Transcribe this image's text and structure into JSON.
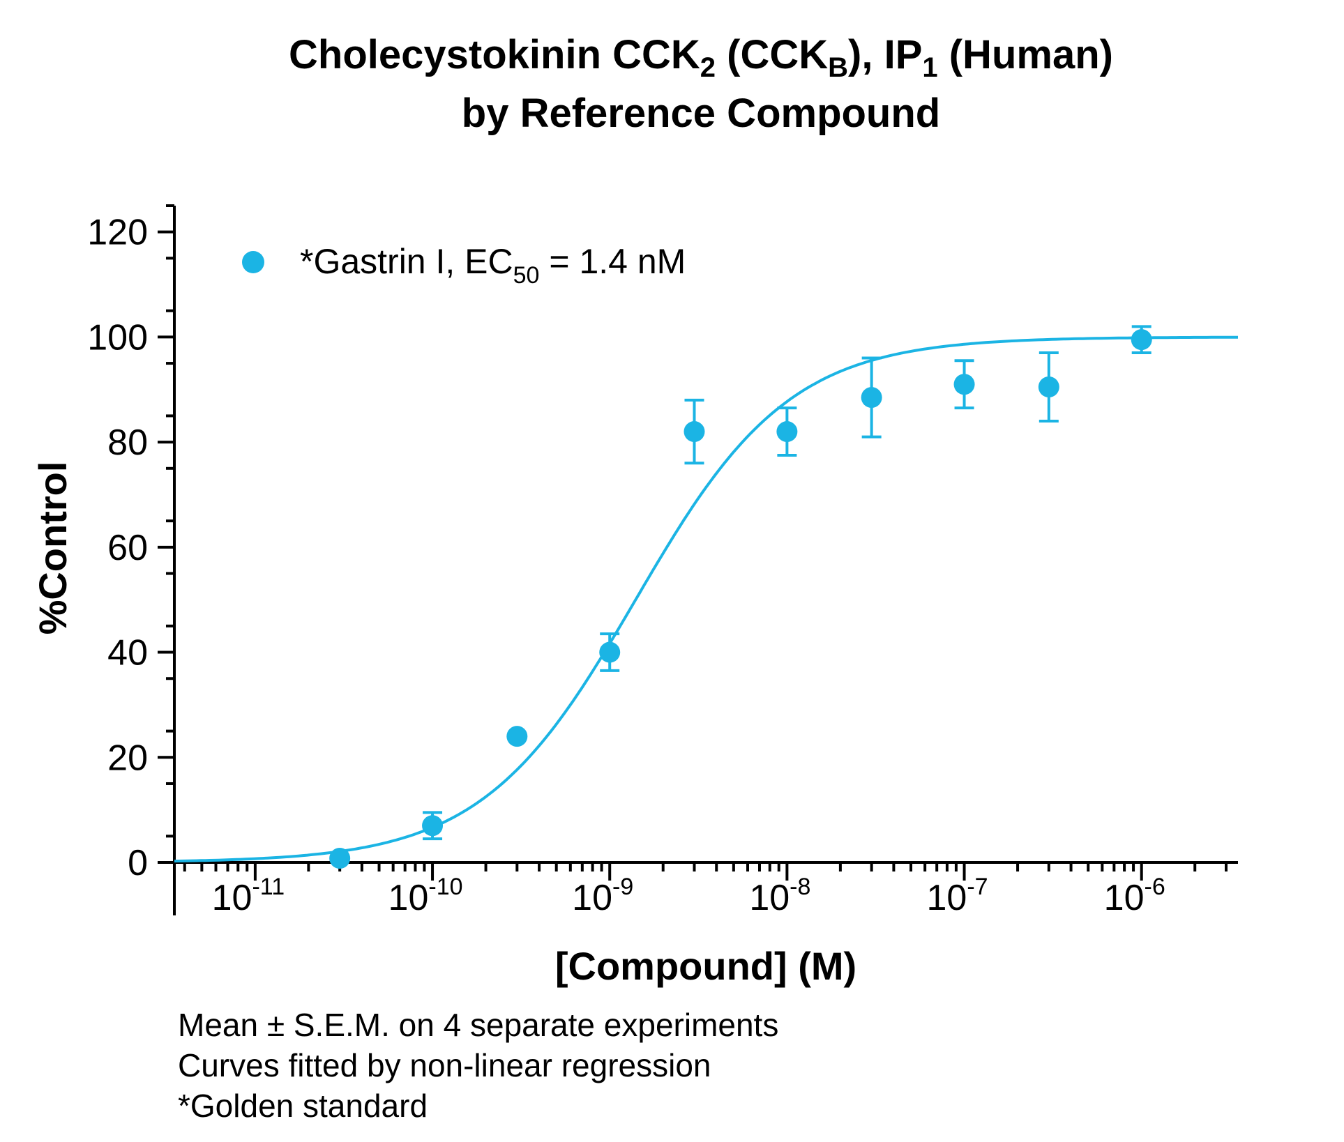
{
  "chart_data": {
    "type": "scatter",
    "title_parts": [
      {
        "text": "Cholecystokinin CCK",
        "sub": false
      },
      {
        "text": "2",
        "sub": true
      },
      {
        "text": " (CCK",
        "sub": false
      },
      {
        "text": "B",
        "sub": true
      },
      {
        "text": "), IP",
        "sub": false
      },
      {
        "text": "1",
        "sub": true
      },
      {
        "text": " (Human)",
        "sub": false
      }
    ],
    "title_line2": "by Reference Compound",
    "xlabel": "[Compound] (M)",
    "ylabel": "%Control",
    "xscale": "log",
    "xlim": [
      3.5e-12,
      3.5e-06
    ],
    "ylim": [
      0,
      125
    ],
    "y_ticks": [
      0,
      20,
      40,
      60,
      80,
      100,
      120
    ],
    "y_tick_labels": [
      "0",
      "20",
      "40",
      "60",
      "80",
      "100",
      "120"
    ],
    "x_ticks": [
      {
        "value": 1e-11,
        "base": "10",
        "exp": "-11"
      },
      {
        "value": 1e-10,
        "base": "10",
        "exp": "-10"
      },
      {
        "value": 1e-09,
        "base": "10",
        "exp": "-9"
      },
      {
        "value": 1e-08,
        "base": "10",
        "exp": "-8"
      },
      {
        "value": 1e-07,
        "base": "10",
        "exp": "-7"
      },
      {
        "value": 1e-06,
        "base": "10",
        "exp": "-6"
      }
    ],
    "grid": false,
    "legend_position": "top-left",
    "series": [
      {
        "legend_text": "*Gastrin I, EC",
        "legend_sub": "50",
        "legend_suffix": " = 1.4 nM",
        "color": "#1bb4e4",
        "points": [
          {
            "x": 3e-11,
            "y": 0.8,
            "err": 0
          },
          {
            "x": 1e-10,
            "y": 7,
            "err": 2.5
          },
          {
            "x": 3e-10,
            "y": 24,
            "err": 0
          },
          {
            "x": 1e-09,
            "y": 40,
            "err": 3.5
          },
          {
            "x": 3e-09,
            "y": 82,
            "err": 6
          },
          {
            "x": 1e-08,
            "y": 82,
            "err": 4.5
          },
          {
            "x": 3e-08,
            "y": 88.5,
            "err": 7.5
          },
          {
            "x": 1e-07,
            "y": 91,
            "err": 4.5
          },
          {
            "x": 3e-07,
            "y": 90.5,
            "err": 6.5
          },
          {
            "x": 1e-06,
            "y": 99.5,
            "err": 2.5
          }
        ],
        "fit": {
          "model": "four-parameter logistic",
          "bottom": 0,
          "top": 100,
          "ec50": 1.4e-09,
          "hill": 1
        }
      }
    ],
    "footnotes": [
      "Mean ± S.E.M. on 4 separate experiments",
      "Curves fitted by non-linear regression",
      "*Golden standard"
    ]
  }
}
